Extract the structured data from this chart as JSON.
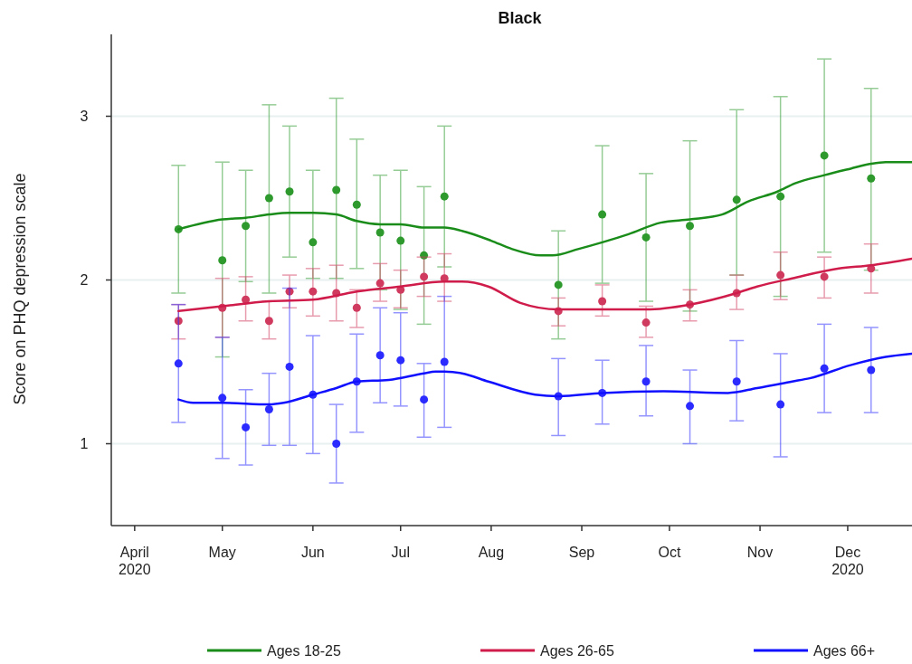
{
  "chart_data": {
    "type": "line",
    "title": "Black",
    "ylabel": "Score on PHQ depression scale",
    "xlim": [
      "2020-03-24",
      "2020-12-23"
    ],
    "xticks": [
      {
        "value": "2020-04-01",
        "label": "April\n2020"
      },
      {
        "value": "2020-05-01",
        "label": "May"
      },
      {
        "value": "2020-06-01",
        "label": "Jun"
      },
      {
        "value": "2020-07-01",
        "label": "Jul"
      },
      {
        "value": "2020-08-01",
        "label": "Aug"
      },
      {
        "value": "2020-09-01",
        "label": "Sep"
      },
      {
        "value": "2020-10-01",
        "label": "Oct"
      },
      {
        "value": "2020-11-01",
        "label": "Nov"
      },
      {
        "value": "2020-12-01",
        "label": "Dec\n2020"
      }
    ],
    "ylim": [
      0.5,
      3.5
    ],
    "yticks": [
      1,
      2,
      3
    ],
    "grid": "y",
    "legend": "bottom",
    "series": [
      {
        "type": "scatter",
        "color": "#2e9a2e",
        "marker": "circle",
        "x": [
          "2020-04-16",
          "2020-05-01",
          "2020-05-09",
          "2020-05-17",
          "2020-05-24",
          "2020-06-01",
          "2020-06-09",
          "2020-06-16",
          "2020-06-24",
          "2020-07-01",
          "2020-07-09",
          "2020-07-16",
          "2020-08-24",
          "2020-09-08",
          "2020-09-23",
          "2020-10-08",
          "2020-10-24",
          "2020-11-08",
          "2020-11-23",
          "2020-12-09"
        ],
        "values": [
          2.31,
          2.12,
          2.33,
          2.5,
          2.54,
          2.23,
          2.55,
          2.46,
          2.29,
          2.24,
          2.15,
          2.51,
          1.97,
          2.4,
          2.26,
          2.33,
          2.49,
          2.51,
          2.76,
          2.62
        ],
        "errors": [
          [
            1.92,
            2.7
          ],
          [
            1.53,
            2.72
          ],
          [
            1.99,
            2.67
          ],
          [
            1.92,
            3.07
          ],
          [
            2.14,
            2.94
          ],
          [
            2.01,
            2.67
          ],
          [
            2.01,
            3.11
          ],
          [
            2.07,
            2.86
          ],
          [
            1.94,
            2.64
          ],
          [
            1.82,
            2.67
          ],
          [
            1.73,
            2.57
          ],
          [
            2.08,
            2.94
          ],
          [
            1.64,
            2.3
          ],
          [
            1.98,
            2.82
          ],
          [
            1.87,
            2.65
          ],
          [
            1.81,
            2.85
          ],
          [
            2.03,
            3.04
          ],
          [
            1.9,
            3.12
          ],
          [
            2.17,
            3.35
          ],
          [
            2.06,
            3.17
          ]
        ]
      },
      {
        "type": "scatter",
        "color": "#d03a5e",
        "marker": "circle",
        "x": [
          "2020-04-16",
          "2020-05-01",
          "2020-05-09",
          "2020-05-17",
          "2020-05-24",
          "2020-06-01",
          "2020-06-09",
          "2020-06-16",
          "2020-06-24",
          "2020-07-01",
          "2020-07-09",
          "2020-07-16",
          "2020-08-24",
          "2020-09-08",
          "2020-09-23",
          "2020-10-08",
          "2020-10-24",
          "2020-11-08",
          "2020-11-23",
          "2020-12-09"
        ],
        "values": [
          1.75,
          1.83,
          1.88,
          1.75,
          1.93,
          1.93,
          1.92,
          1.83,
          1.98,
          1.94,
          2.02,
          2.01,
          1.81,
          1.87,
          1.74,
          1.85,
          1.92,
          2.03,
          2.02,
          2.07
        ],
        "errors": [
          [
            1.64,
            1.85
          ],
          [
            1.65,
            2.01
          ],
          [
            1.75,
            2.02
          ],
          [
            1.64,
            1.87
          ],
          [
            1.83,
            2.03
          ],
          [
            1.78,
            2.07
          ],
          [
            1.75,
            2.09
          ],
          [
            1.71,
            1.94
          ],
          [
            1.87,
            2.1
          ],
          [
            1.83,
            2.06
          ],
          [
            1.9,
            2.14
          ],
          [
            1.87,
            2.16
          ],
          [
            1.72,
            1.89
          ],
          [
            1.78,
            1.97
          ],
          [
            1.65,
            1.84
          ],
          [
            1.75,
            1.94
          ],
          [
            1.82,
            2.03
          ],
          [
            1.88,
            2.17
          ],
          [
            1.89,
            2.14
          ],
          [
            1.92,
            2.22
          ]
        ]
      },
      {
        "type": "scatter",
        "color": "#2b2bff",
        "marker": "circle",
        "x": [
          "2020-04-16",
          "2020-05-01",
          "2020-05-09",
          "2020-05-17",
          "2020-05-24",
          "2020-06-01",
          "2020-06-09",
          "2020-06-16",
          "2020-06-24",
          "2020-07-01",
          "2020-07-09",
          "2020-07-16",
          "2020-08-24",
          "2020-09-08",
          "2020-09-23",
          "2020-10-08",
          "2020-10-24",
          "2020-11-08",
          "2020-11-23",
          "2020-12-09"
        ],
        "values": [
          1.49,
          1.28,
          1.1,
          1.21,
          1.47,
          1.3,
          1.0,
          1.38,
          1.54,
          1.51,
          1.27,
          1.5,
          1.29,
          1.31,
          1.38,
          1.23,
          1.38,
          1.24,
          1.46,
          1.45
        ],
        "errors": [
          [
            1.13,
            1.85
          ],
          [
            0.91,
            1.65
          ],
          [
            0.87,
            1.33
          ],
          [
            0.99,
            1.43
          ],
          [
            0.99,
            1.95
          ],
          [
            0.94,
            1.66
          ],
          [
            0.76,
            1.24
          ],
          [
            1.07,
            1.67
          ],
          [
            1.25,
            1.83
          ],
          [
            1.23,
            1.8
          ],
          [
            1.04,
            1.49
          ],
          [
            1.1,
            1.9
          ],
          [
            1.05,
            1.52
          ],
          [
            1.12,
            1.51
          ],
          [
            1.17,
            1.6
          ],
          [
            1.0,
            1.45
          ],
          [
            1.14,
            1.63
          ],
          [
            0.92,
            1.55
          ],
          [
            1.19,
            1.73
          ],
          [
            1.19,
            1.71
          ]
        ]
      },
      {
        "name": "Ages 18-25",
        "color": "#1a8c1a",
        "x": [
          "2020-04-16",
          "2020-05-01",
          "2020-05-09",
          "2020-05-17",
          "2020-05-24",
          "2020-06-01",
          "2020-06-09",
          "2020-06-16",
          "2020-06-24",
          "2020-07-01",
          "2020-07-09",
          "2020-07-16",
          "2020-07-22",
          "2020-08-01",
          "2020-08-08",
          "2020-08-18",
          "2020-08-22",
          "2020-08-31",
          "2020-09-08",
          "2020-09-17",
          "2020-09-28",
          "2020-10-08",
          "2020-10-19",
          "2020-10-28",
          "2020-11-07",
          "2020-11-13",
          "2020-11-23",
          "2020-12-02",
          "2020-12-09",
          "2020-12-14",
          "2020-12-23"
        ],
        "values": [
          2.31,
          2.37,
          2.38,
          2.4,
          2.41,
          2.41,
          2.4,
          2.36,
          2.34,
          2.34,
          2.32,
          2.32,
          2.3,
          2.24,
          2.19,
          2.15,
          2.15,
          2.19,
          2.23,
          2.28,
          2.35,
          2.37,
          2.4,
          2.48,
          2.54,
          2.59,
          2.64,
          2.68,
          2.71,
          2.72,
          2.72
        ]
      },
      {
        "name": "Ages 26-65",
        "color": "#d01c4b",
        "x": [
          "2020-04-16",
          "2020-05-01",
          "2020-05-17",
          "2020-06-01",
          "2020-06-16",
          "2020-07-01",
          "2020-07-16",
          "2020-07-22",
          "2020-07-31",
          "2020-08-11",
          "2020-08-24",
          "2020-09-08",
          "2020-09-23",
          "2020-10-08",
          "2020-10-24",
          "2020-10-31",
          "2020-11-12",
          "2020-11-28",
          "2020-12-09",
          "2020-12-23"
        ],
        "values": [
          1.81,
          1.84,
          1.87,
          1.88,
          1.93,
          1.96,
          1.99,
          1.99,
          1.96,
          1.86,
          1.82,
          1.82,
          1.82,
          1.85,
          1.92,
          1.96,
          2.01,
          2.07,
          2.09,
          2.13
        ]
      },
      {
        "name": "Ages 66+",
        "color": "#1010ff",
        "x": [
          "2020-04-16",
          "2020-04-21",
          "2020-05-01",
          "2020-05-17",
          "2020-05-22",
          "2020-06-01",
          "2020-06-09",
          "2020-06-16",
          "2020-06-27",
          "2020-07-09",
          "2020-07-13",
          "2020-07-16",
          "2020-07-22",
          "2020-07-31",
          "2020-08-16",
          "2020-08-24",
          "2020-09-08",
          "2020-09-29",
          "2020-10-21",
          "2020-10-31",
          "2020-11-12",
          "2020-11-18",
          "2020-12-02",
          "2020-12-14",
          "2020-12-23"
        ],
        "values": [
          1.27,
          1.25,
          1.25,
          1.24,
          1.25,
          1.3,
          1.34,
          1.38,
          1.39,
          1.43,
          1.44,
          1.44,
          1.43,
          1.38,
          1.3,
          1.29,
          1.31,
          1.32,
          1.31,
          1.34,
          1.38,
          1.4,
          1.48,
          1.53,
          1.55
        ]
      }
    ]
  }
}
